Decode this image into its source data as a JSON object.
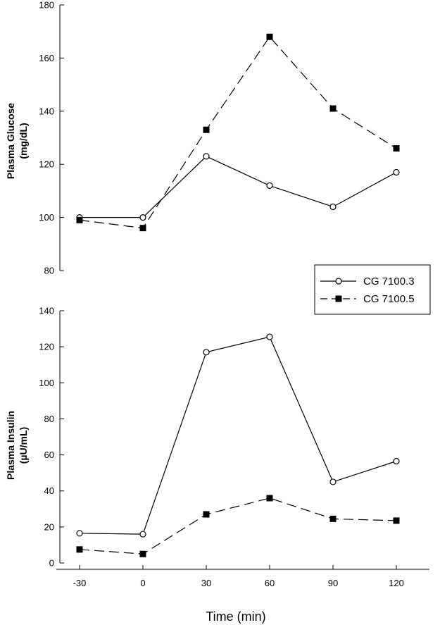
{
  "chart_data": [
    {
      "type": "line",
      "ylabel_line1": "Plasma Glucose",
      "ylabel_line2": "(mg/dL)",
      "xlim": [
        -45,
        135
      ],
      "ylim": [
        80,
        180
      ],
      "yticks": [
        80,
        100,
        120,
        140,
        160,
        180
      ],
      "x": [
        -30,
        0,
        30,
        60,
        90,
        120
      ],
      "series": [
        {
          "name": "CG 7100.3",
          "values": [
            100,
            100,
            123,
            112,
            104,
            117
          ],
          "marker": "open-circle",
          "line": "solid"
        },
        {
          "name": "CG 7100.5",
          "values": [
            99,
            96,
            133,
            168,
            141,
            126
          ],
          "marker": "filled-square",
          "line": "dashed"
        }
      ]
    },
    {
      "type": "line",
      "ylabel_line1": "Plasma Insulin",
      "ylabel_line2": "(µU/mL)",
      "xlim": [
        -45,
        135
      ],
      "ylim": [
        0,
        140
      ],
      "yticks": [
        0,
        20,
        40,
        60,
        80,
        100,
        120,
        140
      ],
      "xticks": [
        -30,
        0,
        30,
        60,
        90,
        120
      ],
      "xlabel": "Time (min)",
      "x": [
        -30,
        0,
        30,
        60,
        90,
        120
      ],
      "series": [
        {
          "name": "CG 7100.3",
          "values": [
            16.5,
            16,
            117,
            125.5,
            45,
            56.5
          ],
          "marker": "open-circle",
          "line": "solid"
        },
        {
          "name": "CG 7100.5",
          "values": [
            7.5,
            5,
            27,
            36,
            24.5,
            23.5
          ],
          "marker": "filled-square",
          "line": "dashed"
        }
      ]
    }
  ],
  "legend": {
    "position": "right, between panels",
    "entries": [
      "CG 7100.3",
      "CG 7100.5"
    ]
  },
  "colors": {
    "line": "#000000",
    "background": "#ffffff",
    "open_marker_fill": "#ffffff"
  }
}
